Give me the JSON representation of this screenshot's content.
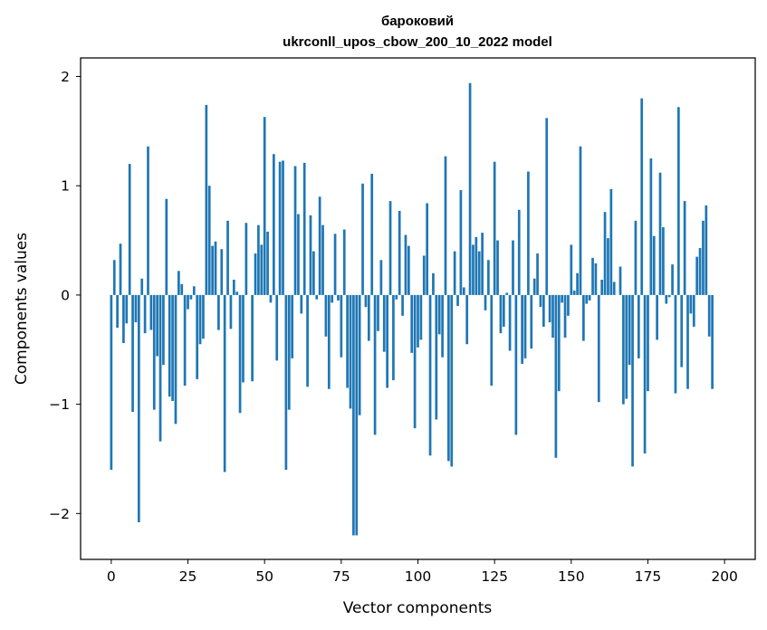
{
  "chart_data": {
    "type": "bar",
    "title": "бароковий",
    "subtitle": "ukrconll_upos_cbow_200_10_2022 model",
    "xlabel": "Vector components",
    "ylabel": "Components values",
    "xlim": [
      -10,
      210
    ],
    "ylim": [
      -2.42,
      2.17
    ],
    "xticks": [
      0,
      25,
      50,
      75,
      100,
      125,
      150,
      175,
      200
    ],
    "yticks": [
      -2,
      -1,
      0,
      1,
      2
    ],
    "ytick_labels": [
      "−2",
      "−1",
      "0",
      "1",
      "2"
    ],
    "grid": false,
    "bar_color": "#1f77b4",
    "series": [
      {
        "name": "бароковий",
        "x_start": 0,
        "values": [
          -1.6,
          0.32,
          -0.3,
          0.47,
          -0.44,
          -0.26,
          1.2,
          -1.07,
          -0.25,
          -2.08,
          0.15,
          -0.35,
          1.36,
          -0.32,
          -1.05,
          -0.56,
          -1.34,
          -0.64,
          0.88,
          -0.93,
          -0.97,
          -1.18,
          0.22,
          0.1,
          -0.83,
          -0.13,
          -0.04,
          0.08,
          -0.77,
          -0.45,
          -0.4,
          1.74,
          1.0,
          0.45,
          0.49,
          -0.32,
          0.42,
          -1.62,
          0.68,
          -0.31,
          0.14,
          0.03,
          -1.08,
          -0.8,
          0.66,
          0.0,
          -0.79,
          0.38,
          0.64,
          0.46,
          1.63,
          0.58,
          -0.07,
          1.29,
          -0.6,
          1.22,
          1.23,
          -1.6,
          -1.05,
          -0.58,
          1.18,
          0.74,
          -0.17,
          1.21,
          -0.84,
          0.73,
          0.4,
          -0.04,
          0.9,
          0.64,
          -0.38,
          -0.86,
          -0.07,
          0.56,
          -0.05,
          -0.57,
          0.6,
          -0.85,
          -1.04,
          -2.2,
          -2.2,
          -1.1,
          1.02,
          -0.11,
          -0.42,
          1.11,
          -1.28,
          -0.33,
          0.32,
          -0.52,
          -0.85,
          0.86,
          -0.78,
          -0.04,
          0.77,
          -0.19,
          0.55,
          0.45,
          -0.53,
          -1.22,
          -0.48,
          -0.41,
          0.36,
          0.84,
          -1.47,
          0.2,
          -1.14,
          -0.36,
          -0.57,
          1.27,
          -1.52,
          -1.57,
          0.4,
          -0.1,
          0.96,
          0.07,
          -0.45,
          1.94,
          0.46,
          0.53,
          0.4,
          0.57,
          -0.14,
          0.32,
          -0.83,
          1.22,
          0.5,
          -0.35,
          -0.29,
          0.02,
          -0.51,
          0.5,
          -1.28,
          0.78,
          -0.63,
          -0.58,
          1.13,
          -0.49,
          0.15,
          0.38,
          -0.11,
          -0.29,
          1.62,
          -0.25,
          -0.39,
          -1.49,
          -0.88,
          -0.07,
          -0.39,
          -0.19,
          0.46,
          0.04,
          0.2,
          1.36,
          -0.42,
          -0.08,
          -0.05,
          0.34,
          0.29,
          -0.98,
          0.14,
          0.76,
          0.52,
          0.97,
          0.12,
          0.0,
          0.26,
          -1.0,
          -0.95,
          -0.64,
          -1.57,
          0.68,
          -0.58,
          1.8,
          -1.45,
          -0.88,
          1.25,
          0.54,
          -0.41,
          1.12,
          0.62,
          -0.08,
          -0.02,
          0.28,
          -0.9,
          1.72,
          -0.66,
          0.86,
          -0.86,
          -0.17,
          -0.29,
          0.35,
          0.43,
          0.68,
          0.82,
          -0.38,
          -0.86
        ]
      }
    ]
  }
}
